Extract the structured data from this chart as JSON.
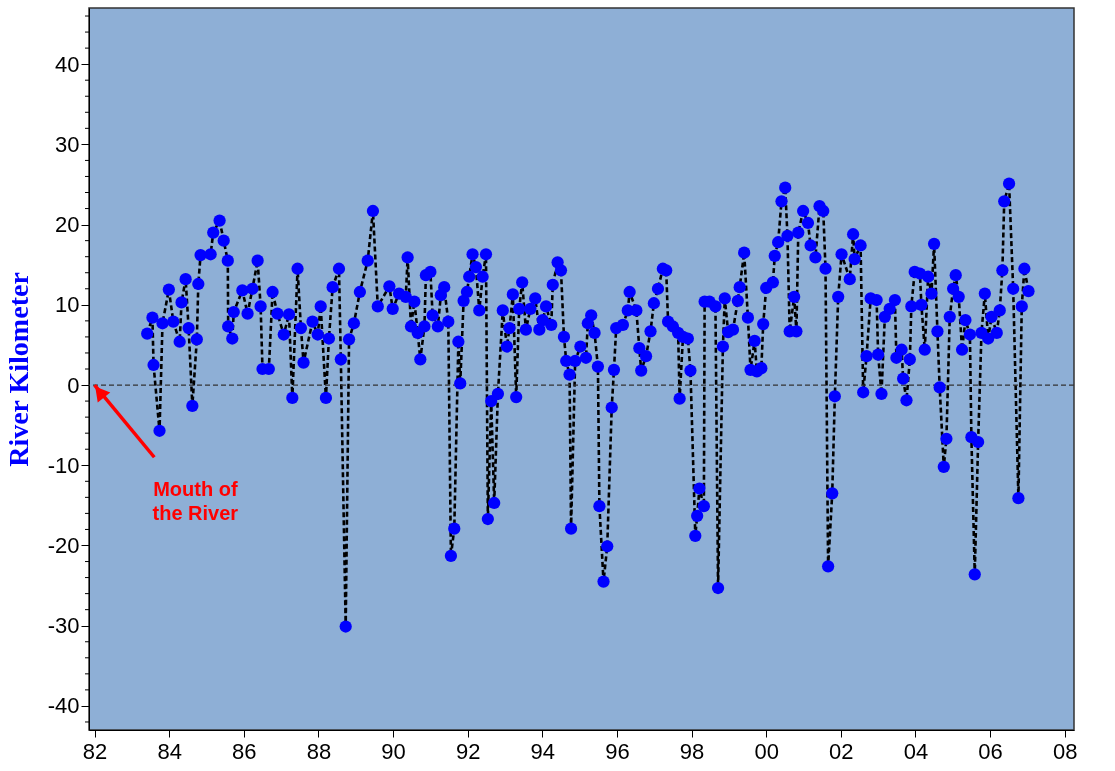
{
  "chart_data": {
    "type": "line",
    "ylabel": "River Kilometer",
    "x": [
      1983.41,
      1983.55,
      1983.58,
      1983.74,
      1983.82,
      1983.99,
      1984.11,
      1984.28,
      1984.33,
      1984.44,
      1984.52,
      1984.62,
      1984.74,
      1984.78,
      1984.84,
      1985.11,
      1985.18,
      1985.35,
      1985.46,
      1985.57,
      1985.58,
      1985.69,
      1985.73,
      1985.96,
      1986.1,
      1986.23,
      1986.37,
      1986.45,
      1986.5,
      1986.67,
      1986.77,
      1986.9,
      1987.07,
      1987.21,
      1987.3,
      1987.44,
      1987.53,
      1987.6,
      1987.84,
      1987.98,
      1988.06,
      1988.2,
      1988.28,
      1988.38,
      1988.55,
      1988.6,
      1988.73,
      1988.82,
      1988.95,
      1989.11,
      1989.32,
      1989.46,
      1989.59,
      1989.9,
      1989.99,
      1990.16,
      1990.34,
      1990.39,
      1990.48,
      1990.57,
      1990.66,
      1990.73,
      1990.84,
      1990.88,
      1991.0,
      1991.06,
      1991.2,
      1991.28,
      1991.37,
      1991.48,
      1991.55,
      1991.64,
      1991.75,
      1991.8,
      1991.89,
      1991.98,
      1992.04,
      1992.13,
      1992.22,
      1992.31,
      1992.4,
      1992.49,
      1992.54,
      1992.63,
      1992.71,
      1992.81,
      1992.94,
      1993.05,
      1993.12,
      1993.21,
      1993.3,
      1993.38,
      1993.46,
      1993.56,
      1993.68,
      1993.81,
      1993.92,
      1994.01,
      1994.1,
      1994.24,
      1994.28,
      1994.41,
      1994.5,
      1994.58,
      1994.64,
      1994.73,
      1994.77,
      1994.88,
      1995.02,
      1995.17,
      1995.22,
      1995.31,
      1995.4,
      1995.49,
      1995.53,
      1995.64,
      1995.74,
      1995.86,
      1995.92,
      1995.98,
      1996.16,
      1996.29,
      1996.34,
      1996.52,
      1996.6,
      1996.65,
      1996.78,
      1996.9,
      1996.99,
      1997.1,
      1997.23,
      1997.32,
      1997.37,
      1997.5,
      1997.64,
      1997.68,
      1997.77,
      1997.9,
      1997.97,
      1998.1,
      1998.15,
      1998.21,
      1998.33,
      1998.35,
      1998.48,
      1998.64,
      1998.71,
      1998.84,
      1998.89,
      1998.98,
      1999.11,
      1999.24,
      1999.29,
      1999.41,
      1999.51,
      1999.58,
      1999.69,
      1999.75,
      1999.87,
      1999.92,
      2000.0,
      2000.18,
      2000.23,
      2000.32,
      2000.41,
      2000.51,
      2000.57,
      2000.63,
      2000.75,
      2000.81,
      2000.86,
      2000.99,
      2001.12,
      2001.19,
      2001.32,
      2001.43,
      2001.53,
      2001.59,
      2001.66,
      2001.77,
      2001.84,
      2001.93,
      2002.02,
      2002.24,
      2002.33,
      2002.37,
      2002.53,
      2002.6,
      2002.69,
      2002.8,
      2002.96,
      2003.0,
      2003.09,
      2003.18,
      2003.31,
      2003.45,
      2003.49,
      2003.63,
      2003.67,
      2003.76,
      2003.85,
      2003.89,
      2003.98,
      2004.12,
      2004.16,
      2004.25,
      2004.34,
      2004.43,
      2004.5,
      2004.59,
      2004.65,
      2004.76,
      2004.83,
      2004.92,
      2005.01,
      2005.08,
      2005.16,
      2005.25,
      2005.34,
      2005.46,
      2005.5,
      2005.59,
      2005.68,
      2005.77,
      2005.86,
      2005.95,
      2006.04,
      2006.18,
      2006.26,
      2006.33,
      2006.38,
      2006.51,
      2006.62,
      2006.76,
      2006.85,
      2006.92,
      2007.03
    ],
    "series": [
      {
        "color": "#0000ff",
        "values": [
          6.4,
          8.4,
          2.5,
          -5.7,
          7.7,
          11.9,
          7.9,
          5.4,
          10.3,
          13.2,
          7.1,
          -2.6,
          5.7,
          12.6,
          16.2,
          16.3,
          19,
          20.5,
          18,
          15.5,
          7.3,
          5.8,
          9.1,
          11.8,
          8.9,
          12,
          15.5,
          9.8,
          2,
          2,
          11.6,
          8.9,
          6.3,
          8.8,
          -1.6,
          14.5,
          7.1,
          2.8,
          7.9,
          6.3,
          9.8,
          -1.6,
          5.8,
          12.2,
          14.5,
          3.2,
          -30.1,
          5.7,
          7.7,
          11.6,
          15.5,
          21.7,
          9.8,
          12.3,
          9.5,
          11.4,
          11,
          15.9,
          7.3,
          10.4,
          6.5,
          3.2,
          7.3,
          13.7,
          14.1,
          8.7,
          7.3,
          11.2,
          12.2,
          7.9,
          -21.3,
          -17.9,
          5.4,
          0.2,
          10.5,
          11.6,
          13.5,
          16.3,
          14.7,
          9.3,
          13.5,
          16.3,
          -16.7,
          -2,
          -14.7,
          -1.1,
          9.3,
          4.8,
          7.1,
          11.3,
          -1.5,
          9.5,
          12.8,
          6.9,
          9.5,
          10.8,
          6.9,
          8.1,
          9.8,
          7.5,
          12.5,
          15.3,
          14.3,
          6,
          3,
          1.3,
          -17.9,
          3,
          4.8,
          3.4,
          7.7,
          8.7,
          6.5,
          2.3,
          -15.1,
          -24.5,
          -20.1,
          -2.8,
          1.9,
          7.1,
          7.5,
          9.3,
          11.6,
          9.3,
          4.6,
          1.8,
          3.6,
          6.7,
          10.2,
          12,
          14.5,
          14.3,
          7.9,
          7.3,
          6.5,
          -1.7,
          6,
          5.8,
          1.8,
          -18.8,
          -16.3,
          -12.9,
          -15.1,
          10.4,
          10.4,
          9.8,
          -25.3,
          4.8,
          10.8,
          6.6,
          6.9,
          10.5,
          12.2,
          16.5,
          8.4,
          1.9,
          5.5,
          1.7,
          2.1,
          7.6,
          12.1,
          12.8,
          16.1,
          17.8,
          22.9,
          24.6,
          18.6,
          6.7,
          11,
          6.7,
          19,
          21.7,
          20.2,
          17.4,
          15.9,
          22.3,
          21.7,
          14.5,
          -22.6,
          -13.5,
          -1.4,
          11,
          16.3,
          13.2,
          18.8,
          15.7,
          17.4,
          -0.9,
          3.6,
          10.8,
          10.6,
          3.8,
          -1.1,
          8.5,
          9.5,
          10.6,
          3.4,
          4.4,
          0.8,
          -1.9,
          3.2,
          9.8,
          14.1,
          13.9,
          10,
          4.4,
          13.5,
          11.4,
          17.6,
          6.7,
          -0.3,
          -10.2,
          -6.7,
          8.5,
          12,
          13.7,
          11,
          4.4,
          8.1,
          6.3,
          -6.5,
          -23.6,
          -7.1,
          6.5,
          11.4,
          5.8,
          8.5,
          6.5,
          9.3,
          14.3,
          22.9,
          25.1,
          12,
          -14.1,
          9.8,
          14.5,
          11.7
        ]
      }
    ],
    "xlim": [
      1981.85,
      2008.25
    ],
    "xticks": [
      {
        "value": 1982,
        "label": "82"
      },
      {
        "value": 1984,
        "label": "84"
      },
      {
        "value": 1986,
        "label": "86"
      },
      {
        "value": 1988,
        "label": "88"
      },
      {
        "value": 1990,
        "label": "90"
      },
      {
        "value": 1992,
        "label": "92"
      },
      {
        "value": 1994,
        "label": "94"
      },
      {
        "value": 1996,
        "label": "96"
      },
      {
        "value": 1998,
        "label": "98"
      },
      {
        "value": 2000,
        "label": "00"
      },
      {
        "value": 2002,
        "label": "02"
      },
      {
        "value": 2004,
        "label": "04"
      },
      {
        "value": 2006,
        "label": "06"
      },
      {
        "value": 2008,
        "label": "08"
      }
    ],
    "ylim": [
      -43,
      47
    ],
    "yticks": [
      {
        "value": -42,
        "label": null
      },
      -40,
      {
        "value": -38,
        "label": null
      },
      {
        "value": -36,
        "label": null
      },
      {
        "value": -34,
        "label": null
      },
      {
        "value": -32,
        "label": null
      },
      -30,
      {
        "value": -28,
        "label": null
      },
      {
        "value": -26,
        "label": null
      },
      {
        "value": -24,
        "label": null
      },
      {
        "value": -22,
        "label": null
      },
      -20,
      {
        "value": -18,
        "label": null
      },
      {
        "value": -16,
        "label": null
      },
      {
        "value": -14,
        "label": null
      },
      {
        "value": -12,
        "label": null
      },
      -10,
      {
        "value": -8,
        "label": null
      },
      {
        "value": -6,
        "label": null
      },
      {
        "value": -4,
        "label": null
      },
      {
        "value": -2,
        "label": null
      },
      0,
      {
        "value": 2,
        "label": null
      },
      {
        "value": 4,
        "label": null
      },
      {
        "value": 6,
        "label": null
      },
      {
        "value": 8,
        "label": null
      },
      10,
      {
        "value": 12,
        "label": null
      },
      {
        "value": 14,
        "label": null
      },
      {
        "value": 16,
        "label": null
      },
      {
        "value": 18,
        "label": null
      },
      20,
      {
        "value": 22,
        "label": null
      },
      {
        "value": 24,
        "label": null
      },
      {
        "value": 26,
        "label": null
      },
      {
        "value": 28,
        "label": null
      },
      30,
      {
        "value": 32,
        "label": null
      },
      {
        "value": 34,
        "label": null
      },
      {
        "value": 36,
        "label": null
      },
      {
        "value": 38,
        "label": null
      },
      40,
      {
        "value": 42,
        "label": null
      },
      {
        "value": 44,
        "label": null
      },
      {
        "value": 46,
        "label": null
      }
    ],
    "ref_lines": [
      {
        "axis": "y",
        "value": 0,
        "color": "#333333",
        "line_style": "dashed"
      }
    ],
    "annotations": [
      {
        "text": "Mouth of the River",
        "x": 1982,
        "y": 0
      }
    ],
    "grid": false,
    "marker": "circle",
    "line_style": "dashed"
  }
}
